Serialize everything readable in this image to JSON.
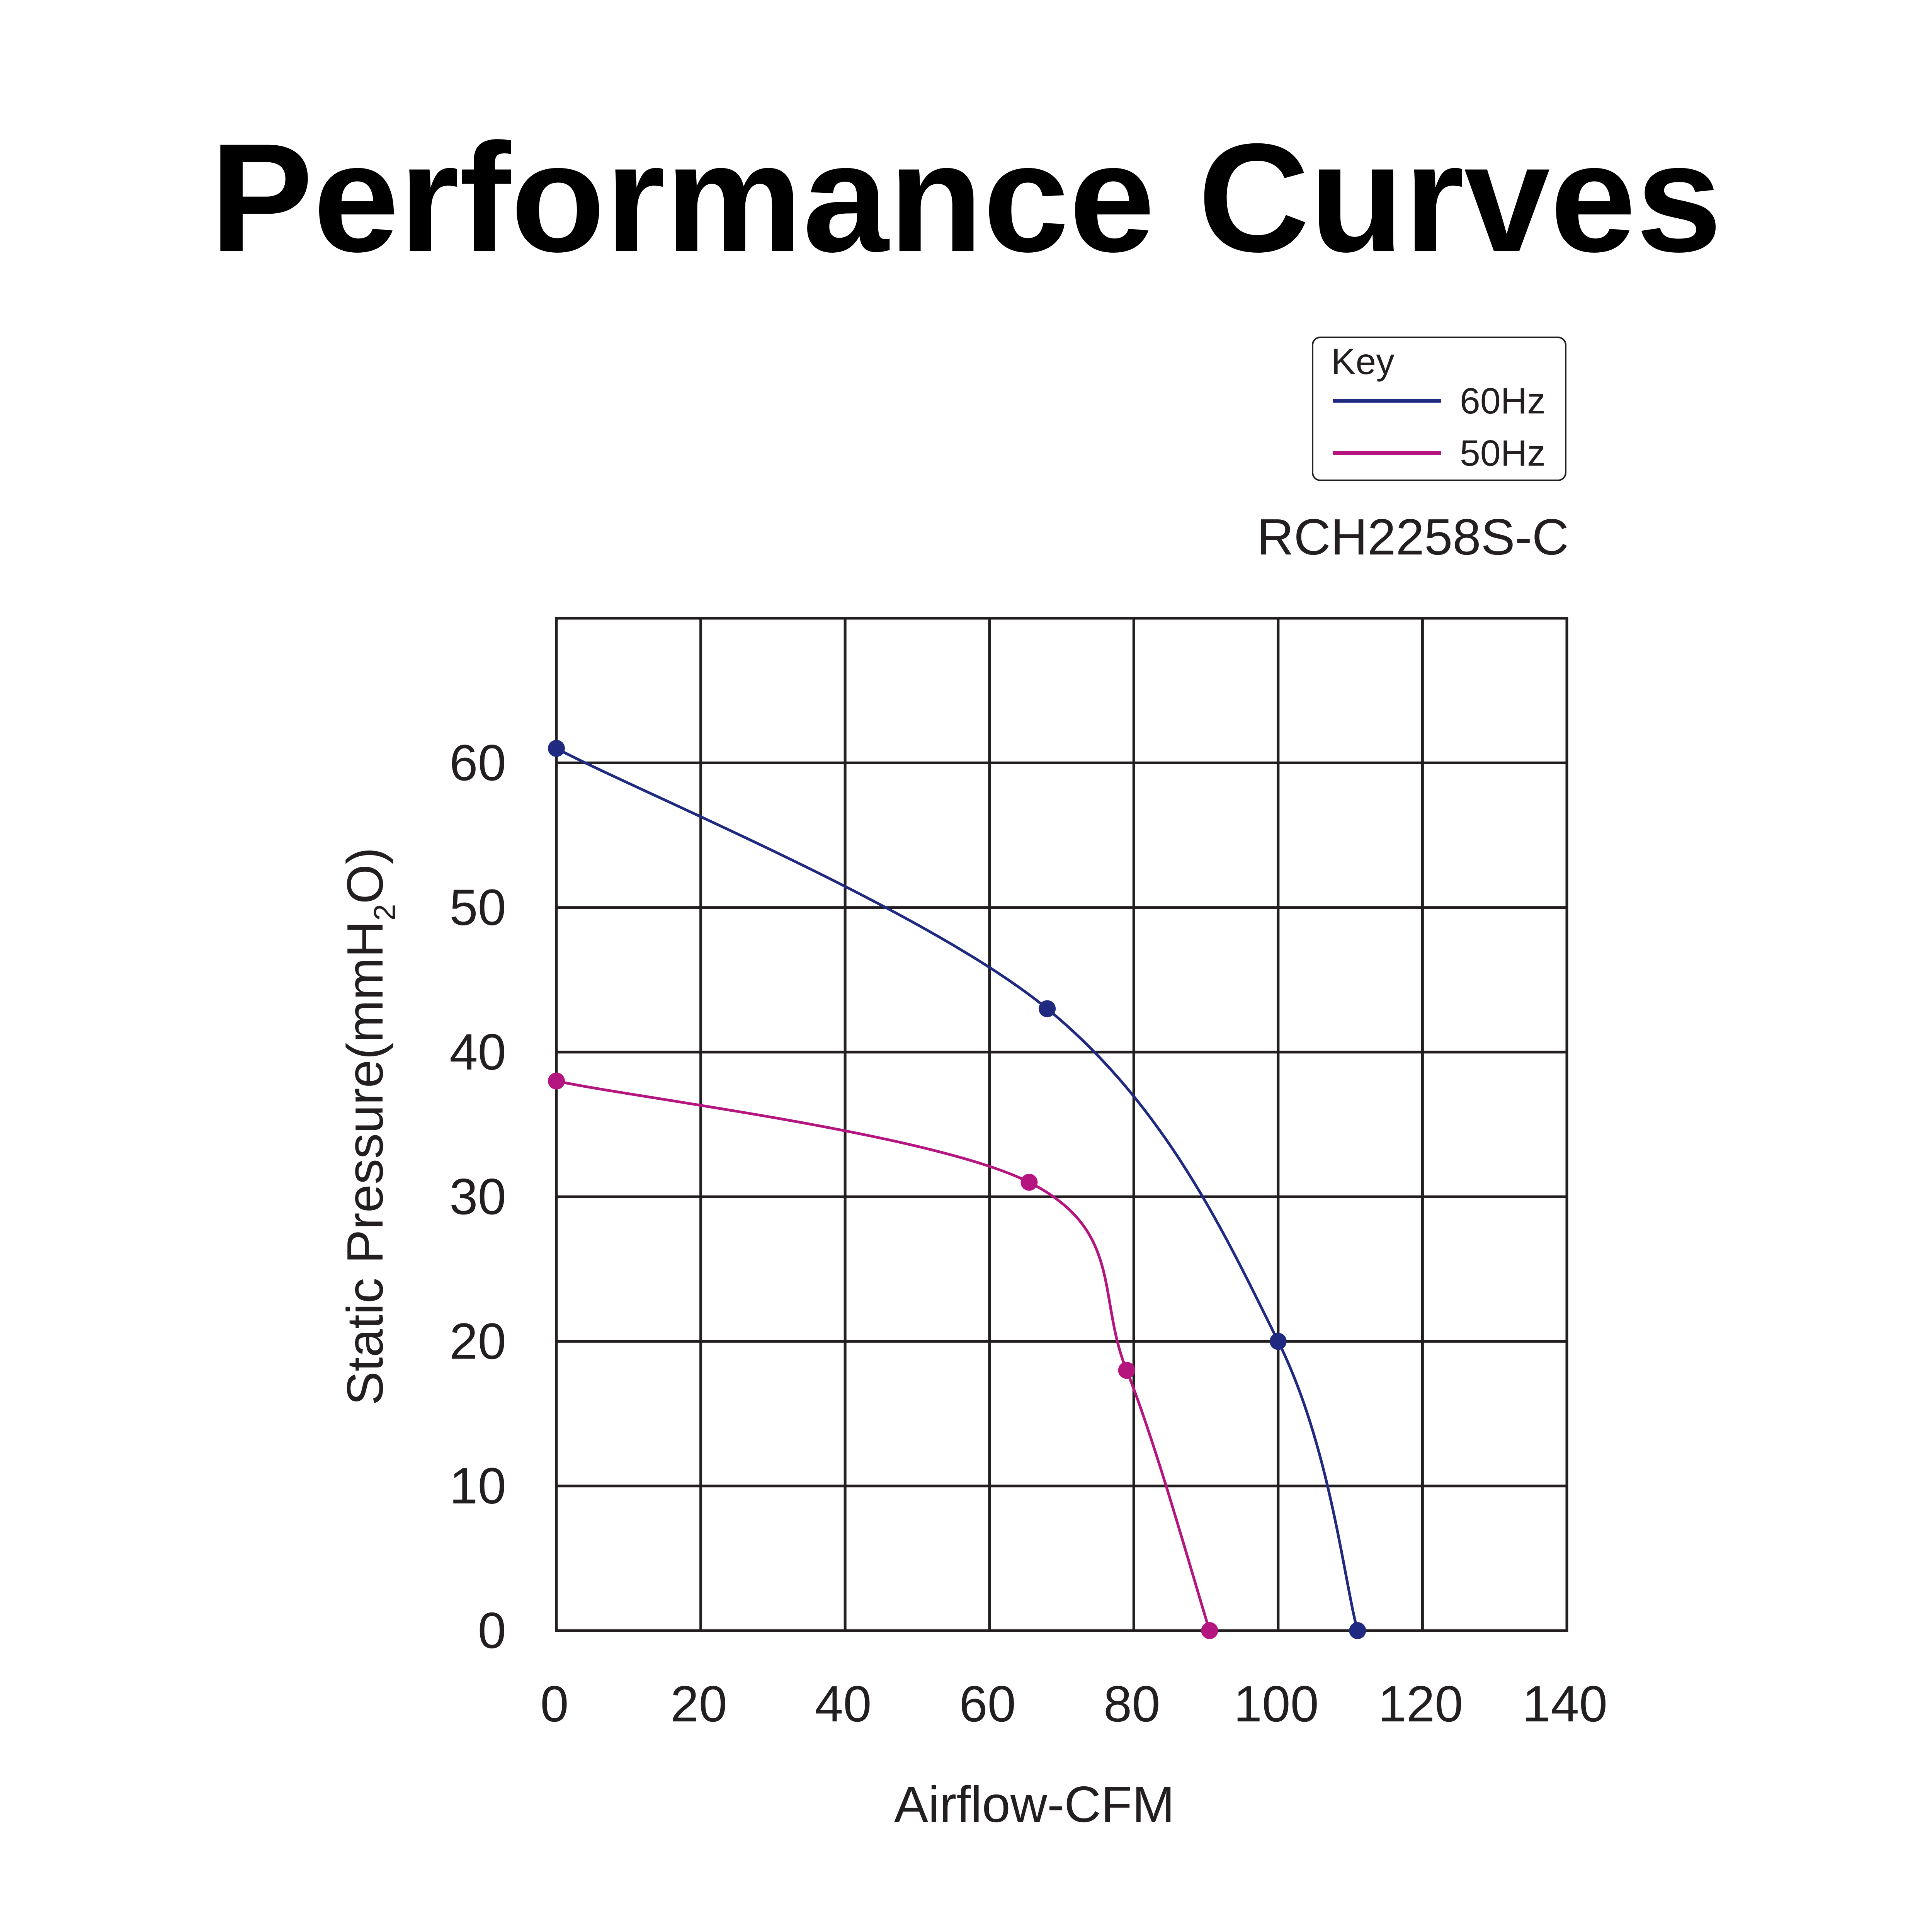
{
  "page": {
    "title": "Performance Curves",
    "model": "RCH2258S-C"
  },
  "legend": {
    "title": "Key",
    "items": [
      {
        "label": "60Hz",
        "color": "#1f2a80"
      },
      {
        "label": "50Hz",
        "color": "#b5157f"
      }
    ]
  },
  "chart_data": {
    "type": "line",
    "title": "Performance Curves",
    "subtitle": "RCH2258S-C",
    "xlabel": "Airflow-CFM",
    "ylabel_main": "Static Pressure(mmH",
    "ylabel_sub": "2",
    "ylabel_end": "O)",
    "xlim": [
      0,
      140
    ],
    "ylim": [
      0,
      70
    ],
    "xticks": [
      0,
      20,
      40,
      60,
      80,
      100,
      120,
      140
    ],
    "yticks": [
      0,
      10,
      20,
      30,
      40,
      50,
      60
    ],
    "grid": true,
    "legend_position": "top-right",
    "series": [
      {
        "name": "60Hz",
        "color": "#1f2a80",
        "x": [
          0,
          68,
          100,
          111
        ],
        "y": [
          61,
          43,
          20,
          0
        ]
      },
      {
        "name": "50Hz",
        "color": "#b5157f",
        "x": [
          0,
          65.5,
          79,
          90.5
        ],
        "y": [
          38,
          31,
          18,
          0
        ]
      }
    ]
  }
}
